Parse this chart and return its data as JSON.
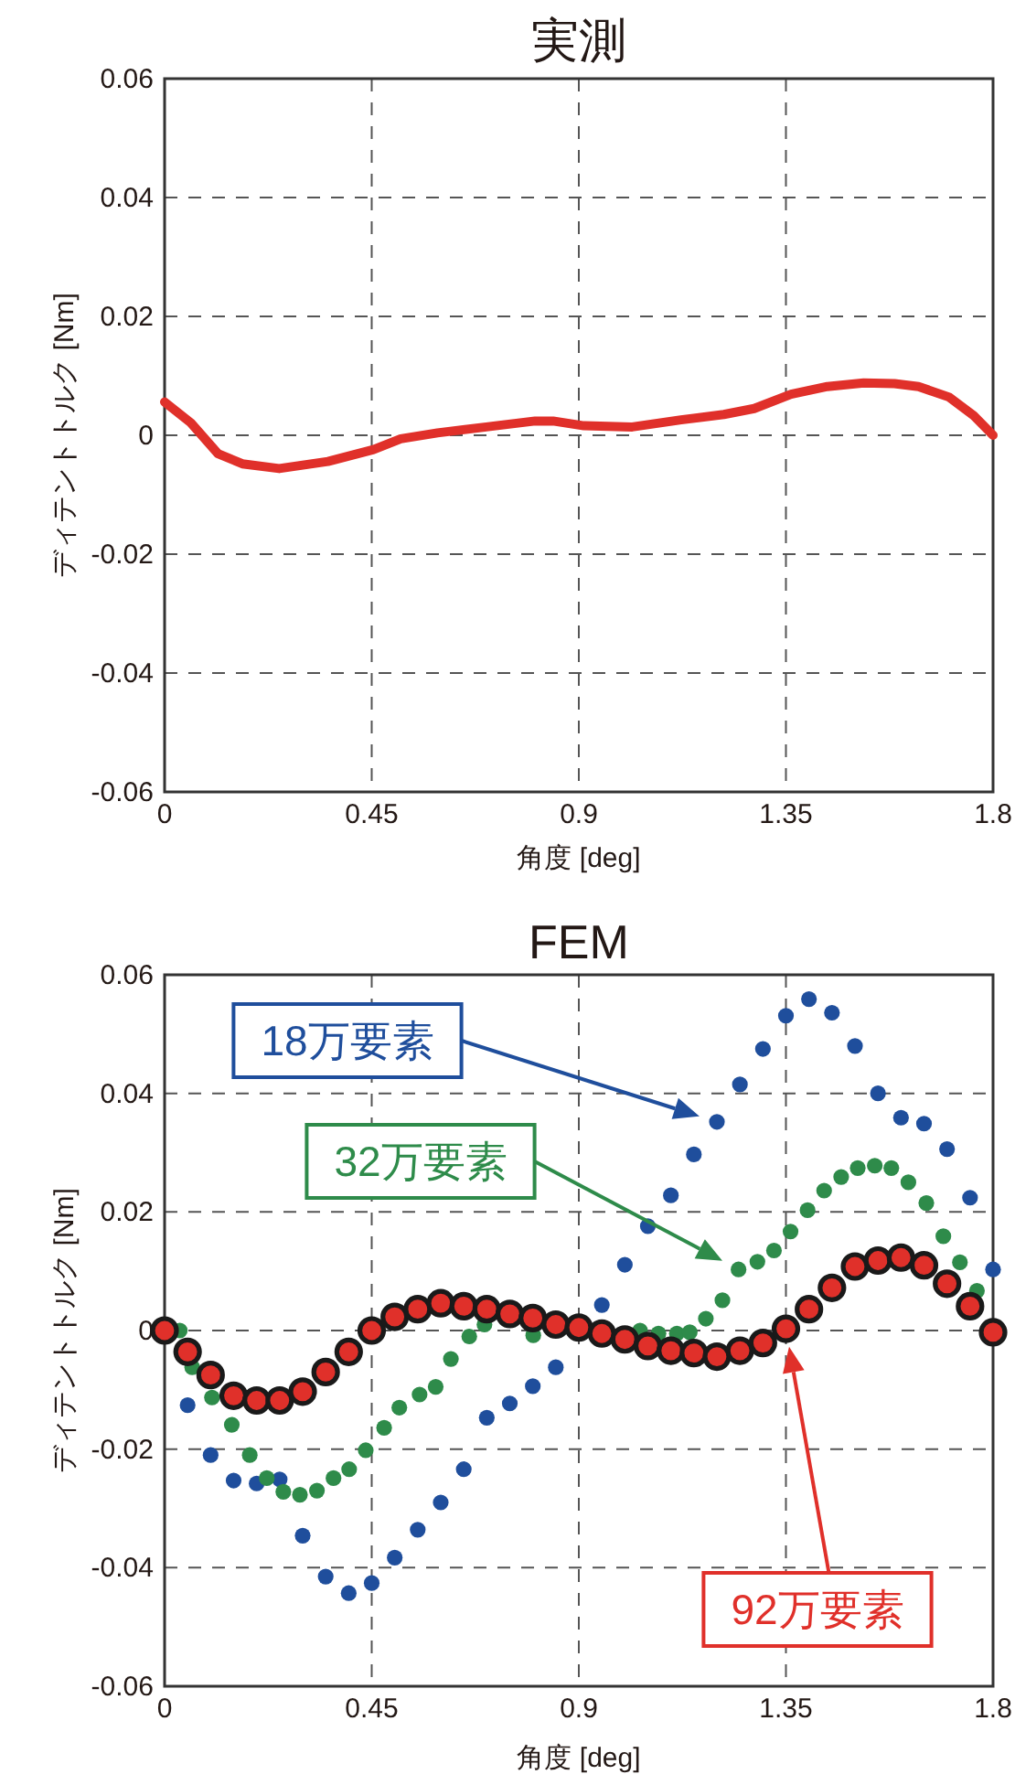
{
  "chart_data": [
    {
      "type": "line",
      "title": "実測",
      "xlabel": "角度 [deg]",
      "ylabel": "ディテントトルク [Nm]",
      "xlim": [
        0,
        1.8
      ],
      "ylim": [
        -0.06,
        0.06
      ],
      "xticks": [
        0,
        0.45,
        0.9,
        1.35,
        1.8
      ],
      "yticks": [
        -0.06,
        -0.04,
        -0.02,
        0,
        0.02,
        0.04,
        0.06
      ],
      "grid": true,
      "line_style": "solid",
      "series": [
        {
          "color": "#e0302a",
          "x": [
            0,
            0.057,
            0.116,
            0.169,
            0.249,
            0.355,
            0.454,
            0.513,
            0.593,
            0.699,
            0.805,
            0.844,
            0.911,
            1.016,
            1.122,
            1.215,
            1.281,
            1.361,
            1.44,
            1.519,
            1.586,
            1.638,
            1.705,
            1.758,
            1.8
          ],
          "values": [
            0.0056,
            0.0021,
            -0.0031,
            -0.0048,
            -0.0056,
            -0.0044,
            -0.0024,
            -0.0006,
            0.0004,
            0.0014,
            0.0024,
            0.0024,
            0.0016,
            0.0014,
            0.0026,
            0.0035,
            0.0045,
            0.0069,
            0.0082,
            0.0088,
            0.0087,
            0.0082,
            0.0064,
            0.0033,
            0
          ]
        }
      ]
    },
    {
      "type": "scatter",
      "title": "FEM",
      "xlabel": "角度 [deg]",
      "ylabel": "ディテントトルク [Nm]",
      "xlim": [
        0,
        1.8
      ],
      "ylim": [
        -0.06,
        0.06
      ],
      "xticks": [
        0,
        0.45,
        0.9,
        1.35,
        1.8
      ],
      "yticks": [
        -0.06,
        -0.04,
        -0.02,
        0,
        0.02,
        0.04,
        0.06
      ],
      "grid": true,
      "marker": "circle",
      "series": [
        {
          "name": "18万要素",
          "color": "#1f4e9c",
          "x": [
            0.05,
            0.1,
            0.15,
            0.2,
            0.25,
            0.3,
            0.35,
            0.4,
            0.45,
            0.5,
            0.55,
            0.6,
            0.65,
            0.7,
            0.75,
            0.8,
            0.85,
            0.9,
            0.95,
            1.0,
            1.05,
            1.1,
            1.15,
            1.2,
            1.25,
            1.3,
            1.35,
            1.4,
            1.45,
            1.5,
            1.55,
            1.6,
            1.65,
            1.7,
            1.75,
            1.8
          ],
          "values": [
            -0.0126,
            -0.021,
            -0.0253,
            -0.0258,
            -0.0251,
            -0.0346,
            -0.0415,
            -0.0443,
            -0.0426,
            -0.0383,
            -0.0336,
            -0.029,
            -0.0234,
            -0.0147,
            -0.0123,
            -0.0094,
            -0.0062,
            null,
            0.0043,
            0.0111,
            0.0176,
            0.0228,
            0.0297,
            0.0352,
            0.0415,
            0.0475,
            0.0531,
            0.0559,
            0.0536,
            0.048,
            0.04,
            0.0359,
            0.0349,
            0.0306,
            0.0224,
            0.0103
          ]
        },
        {
          "name": "32万要素",
          "color": "#2e8b4a",
          "x": [
            0.033,
            0.06,
            0.103,
            0.146,
            0.185,
            0.222,
            0.258,
            0.294,
            0.331,
            0.367,
            0.401,
            0.437,
            0.477,
            0.51,
            0.554,
            0.589,
            0.622,
            0.662,
            0.695,
            0.735,
            0.768,
            0.801,
            1.033,
            1.073,
            1.113,
            1.141,
            1.176,
            1.212,
            1.247,
            1.288,
            1.324,
            1.36,
            1.397,
            1.433,
            1.47,
            1.506,
            1.543,
            1.579,
            1.616,
            1.655,
            1.692,
            1.728,
            1.765
          ],
          "values": [
            0,
            -0.0062,
            -0.0113,
            -0.0159,
            -0.021,
            -0.0249,
            -0.0272,
            -0.0277,
            -0.027,
            -0.0249,
            -0.0234,
            -0.0202,
            -0.0164,
            -0.013,
            -0.0108,
            -0.0095,
            -0.0048,
            -0.001,
            0.001,
            null,
            null,
            -0.0008,
            0,
            -0.0005,
            -0.0005,
            -0.0003,
            0.002,
            0.0051,
            0.0103,
            0.0116,
            0.0135,
            0.0167,
            0.0203,
            0.0236,
            0.0259,
            0.0274,
            0.0278,
            0.0274,
            0.025,
            0.0215,
            0.0159,
            0.0115,
            0.0067
          ]
        },
        {
          "name": "92万要素",
          "color": "#e0302a",
          "x": [
            0,
            0.05,
            0.1,
            0.15,
            0.2,
            0.25,
            0.3,
            0.35,
            0.4,
            0.45,
            0.5,
            0.55,
            0.6,
            0.65,
            0.7,
            0.75,
            0.8,
            0.85,
            0.9,
            0.95,
            1.0,
            1.05,
            1.1,
            1.15,
            1.2,
            1.25,
            1.3,
            1.35,
            1.4,
            1.45,
            1.5,
            1.55,
            1.6,
            1.65,
            1.7,
            1.75,
            1.8
          ],
          "values": [
            0,
            -0.0036,
            -0.0075,
            -0.011,
            -0.0118,
            -0.0118,
            -0.0103,
            -0.007,
            -0.0036,
            0,
            0.0023,
            0.0036,
            0.0046,
            0.0041,
            0.0036,
            0.0028,
            0.0021,
            0.001,
            0.0005,
            -0.0005,
            -0.0015,
            -0.0026,
            -0.0034,
            -0.0038,
            -0.0044,
            -0.0034,
            -0.0021,
            0.0003,
            0.0036,
            0.0072,
            0.0108,
            0.0118,
            0.0123,
            0.011,
            0.0079,
            0.0041,
            -0.0003
          ]
        }
      ]
    }
  ]
}
